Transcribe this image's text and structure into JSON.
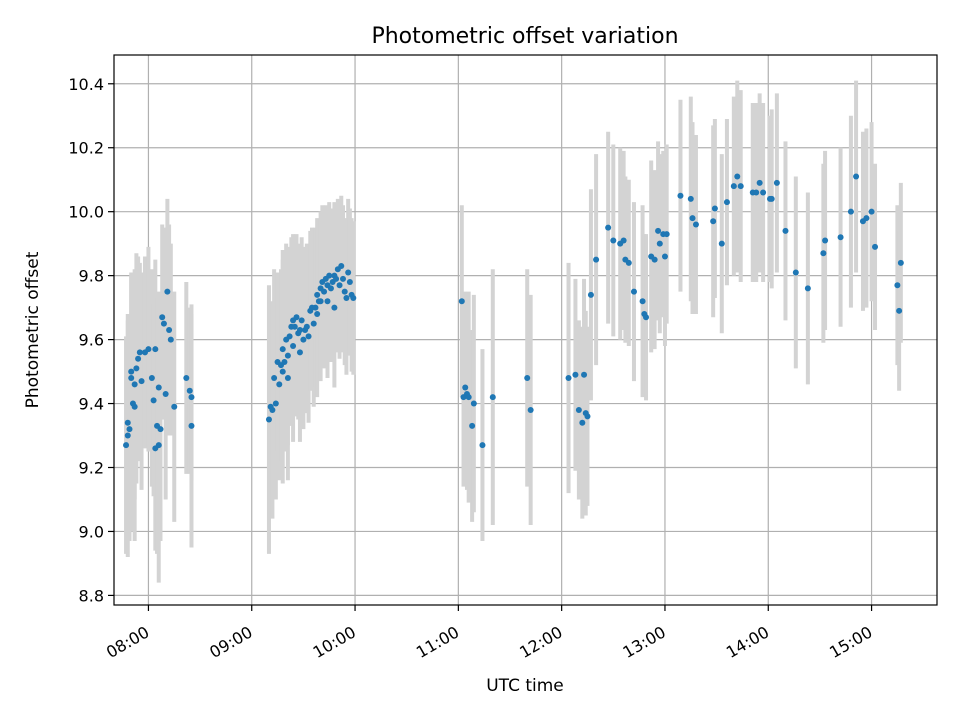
{
  "chart_data": {
    "type": "scatter",
    "title": "Photometric offset variation",
    "xlabel": "UTC time",
    "ylabel": "Photometric offset",
    "xlim": [
      "07:40",
      "15:38"
    ],
    "ylim": [
      8.77,
      10.49
    ],
    "x_ticks": [
      "08:00",
      "09:00",
      "10:00",
      "11:00",
      "12:00",
      "13:00",
      "14:00",
      "15:00"
    ],
    "y_ticks": [
      "8.8",
      "9.0",
      "9.2",
      "9.4",
      "9.6",
      "9.8",
      "10.0",
      "10.2",
      "10.4"
    ],
    "grid": true,
    "marker_color": "#1f77b4",
    "errorbar_color": "#d3d3d3",
    "points": [
      {
        "x": "07:47",
        "y": 9.27,
        "err": 0.34
      },
      {
        "x": "07:48",
        "y": 9.3,
        "err": 0.38
      },
      {
        "x": "07:48",
        "y": 9.34,
        "err": 0.32
      },
      {
        "x": "07:49",
        "y": 9.32,
        "err": 0.35
      },
      {
        "x": "07:50",
        "y": 9.48,
        "err": 0.33
      },
      {
        "x": "07:50",
        "y": 9.5,
        "err": 0.3
      },
      {
        "x": "07:51",
        "y": 9.4,
        "err": 0.4
      },
      {
        "x": "07:52",
        "y": 9.46,
        "err": 0.36
      },
      {
        "x": "07:52",
        "y": 9.39,
        "err": 0.42
      },
      {
        "x": "07:53",
        "y": 9.51,
        "err": 0.36
      },
      {
        "x": "07:54",
        "y": 9.54,
        "err": 0.32
      },
      {
        "x": "07:55",
        "y": 9.56,
        "err": 0.28
      },
      {
        "x": "07:56",
        "y": 9.47,
        "err": 0.34
      },
      {
        "x": "07:58",
        "y": 9.56,
        "err": 0.3
      },
      {
        "x": "08:00",
        "y": 9.57,
        "err": 0.32
      },
      {
        "x": "08:02",
        "y": 9.48,
        "err": 0.34
      },
      {
        "x": "08:03",
        "y": 9.41,
        "err": 0.3
      },
      {
        "x": "08:04",
        "y": 9.57,
        "err": 0.28
      },
      {
        "x": "08:04",
        "y": 9.26,
        "err": 0.32
      },
      {
        "x": "08:05",
        "y": 9.33,
        "err": 0.4
      },
      {
        "x": "08:06",
        "y": 9.27,
        "err": 0.43
      },
      {
        "x": "08:06",
        "y": 9.45,
        "err": 0.3
      },
      {
        "x": "08:07",
        "y": 9.32,
        "err": 0.35
      },
      {
        "x": "08:08",
        "y": 9.67,
        "err": 0.29
      },
      {
        "x": "08:09",
        "y": 9.65,
        "err": 0.3
      },
      {
        "x": "08:10",
        "y": 9.43,
        "err": 0.33
      },
      {
        "x": "08:11",
        "y": 9.75,
        "err": 0.29
      },
      {
        "x": "08:12",
        "y": 9.63,
        "err": 0.33
      },
      {
        "x": "08:13",
        "y": 9.6,
        "err": 0.3
      },
      {
        "x": "08:15",
        "y": 9.39,
        "err": 0.36
      },
      {
        "x": "08:22",
        "y": 9.48,
        "err": 0.3
      },
      {
        "x": "08:24",
        "y": 9.44,
        "err": 0.26
      },
      {
        "x": "08:25",
        "y": 9.42,
        "err": 0.26
      },
      {
        "x": "08:25",
        "y": 9.33,
        "err": 0.38
      },
      {
        "x": "09:10",
        "y": 9.35,
        "err": 0.42
      },
      {
        "x": "09:11",
        "y": 9.39,
        "err": 0.32
      },
      {
        "x": "09:12",
        "y": 9.38,
        "err": 0.34
      },
      {
        "x": "09:13",
        "y": 9.48,
        "err": 0.34
      },
      {
        "x": "09:14",
        "y": 9.4,
        "err": 0.3
      },
      {
        "x": "09:15",
        "y": 9.53,
        "err": 0.28
      },
      {
        "x": "09:16",
        "y": 9.46,
        "err": 0.3
      },
      {
        "x": "09:17",
        "y": 9.52,
        "err": 0.3
      },
      {
        "x": "09:18",
        "y": 9.57,
        "err": 0.31
      },
      {
        "x": "09:18",
        "y": 9.5,
        "err": 0.35
      },
      {
        "x": "09:19",
        "y": 9.53,
        "err": 0.28
      },
      {
        "x": "09:20",
        "y": 9.6,
        "err": 0.3
      },
      {
        "x": "09:21",
        "y": 9.55,
        "err": 0.28
      },
      {
        "x": "09:21",
        "y": 9.48,
        "err": 0.32
      },
      {
        "x": "09:22",
        "y": 9.61,
        "err": 0.28
      },
      {
        "x": "09:23",
        "y": 9.64,
        "err": 0.28
      },
      {
        "x": "09:24",
        "y": 9.66,
        "err": 0.27
      },
      {
        "x": "09:24",
        "y": 9.58,
        "err": 0.3
      },
      {
        "x": "09:25",
        "y": 9.64,
        "err": 0.28
      },
      {
        "x": "09:26",
        "y": 9.67,
        "err": 0.26
      },
      {
        "x": "09:27",
        "y": 9.62,
        "err": 0.27
      },
      {
        "x": "09:28",
        "y": 9.63,
        "err": 0.27
      },
      {
        "x": "09:28",
        "y": 9.56,
        "err": 0.28
      },
      {
        "x": "09:29",
        "y": 9.66,
        "err": 0.26
      },
      {
        "x": "09:30",
        "y": 9.6,
        "err": 0.28
      },
      {
        "x": "09:31",
        "y": 9.63,
        "err": 0.26
      },
      {
        "x": "09:32",
        "y": 9.64,
        "err": 0.26
      },
      {
        "x": "09:33",
        "y": 9.61,
        "err": 0.27
      },
      {
        "x": "09:34",
        "y": 9.69,
        "err": 0.25
      },
      {
        "x": "09:35",
        "y": 9.7,
        "err": 0.25
      },
      {
        "x": "09:36",
        "y": 9.65,
        "err": 0.26
      },
      {
        "x": "09:37",
        "y": 9.7,
        "err": 0.25
      },
      {
        "x": "09:38",
        "y": 9.74,
        "err": 0.24
      },
      {
        "x": "09:38",
        "y": 9.68,
        "err": 0.26
      },
      {
        "x": "09:39",
        "y": 9.72,
        "err": 0.24
      },
      {
        "x": "09:40",
        "y": 9.76,
        "err": 0.24
      },
      {
        "x": "09:40",
        "y": 9.72,
        "err": 0.25
      },
      {
        "x": "09:41",
        "y": 9.78,
        "err": 0.24
      },
      {
        "x": "09:42",
        "y": 9.75,
        "err": 0.24
      },
      {
        "x": "09:43",
        "y": 9.79,
        "err": 0.23
      },
      {
        "x": "09:44",
        "y": 9.77,
        "err": 0.23
      },
      {
        "x": "09:44",
        "y": 9.72,
        "err": 0.24
      },
      {
        "x": "09:45",
        "y": 9.8,
        "err": 0.23
      },
      {
        "x": "09:46",
        "y": 9.76,
        "err": 0.23
      },
      {
        "x": "09:47",
        "y": 9.78,
        "err": 0.23
      },
      {
        "x": "09:48",
        "y": 9.7,
        "err": 0.25
      },
      {
        "x": "09:48",
        "y": 9.8,
        "err": 0.23
      },
      {
        "x": "09:49",
        "y": 9.79,
        "err": 0.23
      },
      {
        "x": "09:50",
        "y": 9.82,
        "err": 0.22
      },
      {
        "x": "09:51",
        "y": 9.77,
        "err": 0.23
      },
      {
        "x": "09:52",
        "y": 9.83,
        "err": 0.22
      },
      {
        "x": "09:53",
        "y": 9.79,
        "err": 0.23
      },
      {
        "x": "09:54",
        "y": 9.75,
        "err": 0.23
      },
      {
        "x": "09:55",
        "y": 9.73,
        "err": 0.24
      },
      {
        "x": "09:56",
        "y": 9.81,
        "err": 0.23
      },
      {
        "x": "09:57",
        "y": 9.78,
        "err": 0.23
      },
      {
        "x": "09:58",
        "y": 9.74,
        "err": 0.24
      },
      {
        "x": "09:59",
        "y": 9.73,
        "err": 0.24
      },
      {
        "x": "11:02",
        "y": 9.72,
        "err": 0.3
      },
      {
        "x": "11:03",
        "y": 9.42,
        "err": 0.28
      },
      {
        "x": "11:04",
        "y": 9.45,
        "err": 0.3
      },
      {
        "x": "11:05",
        "y": 9.43,
        "err": 0.3
      },
      {
        "x": "11:06",
        "y": 9.42,
        "err": 0.33
      },
      {
        "x": "11:08",
        "y": 9.33,
        "err": 0.3
      },
      {
        "x": "11:09",
        "y": 9.4,
        "err": 0.34
      },
      {
        "x": "11:14",
        "y": 9.27,
        "err": 0.3
      },
      {
        "x": "11:20",
        "y": 9.42,
        "err": 0.4
      },
      {
        "x": "11:40",
        "y": 9.48,
        "err": 0.34
      },
      {
        "x": "11:42",
        "y": 9.38,
        "err": 0.36
      },
      {
        "x": "12:04",
        "y": 9.48,
        "err": 0.36
      },
      {
        "x": "12:08",
        "y": 9.49,
        "err": 0.3
      },
      {
        "x": "12:10",
        "y": 9.38,
        "err": 0.28
      },
      {
        "x": "12:12",
        "y": 9.34,
        "err": 0.3
      },
      {
        "x": "12:13",
        "y": 9.49,
        "err": 0.3
      },
      {
        "x": "12:14",
        "y": 9.37,
        "err": 0.32
      },
      {
        "x": "12:15",
        "y": 9.36,
        "err": 0.28
      },
      {
        "x": "12:17",
        "y": 9.74,
        "err": 0.33
      },
      {
        "x": "12:20",
        "y": 9.85,
        "err": 0.33
      },
      {
        "x": "12:27",
        "y": 9.95,
        "err": 0.3
      },
      {
        "x": "12:30",
        "y": 9.91,
        "err": 0.3
      },
      {
        "x": "12:34",
        "y": 9.9,
        "err": 0.3
      },
      {
        "x": "12:36",
        "y": 9.91,
        "err": 0.28
      },
      {
        "x": "12:37",
        "y": 9.85,
        "err": 0.26
      },
      {
        "x": "12:39",
        "y": 9.84,
        "err": 0.26
      },
      {
        "x": "12:42",
        "y": 9.75,
        "err": 0.28
      },
      {
        "x": "12:47",
        "y": 9.72,
        "err": 0.3
      },
      {
        "x": "12:48",
        "y": 9.68,
        "err": 0.25
      },
      {
        "x": "12:49",
        "y": 9.67,
        "err": 0.26
      },
      {
        "x": "12:52",
        "y": 9.86,
        "err": 0.3
      },
      {
        "x": "12:54",
        "y": 9.85,
        "err": 0.28
      },
      {
        "x": "12:56",
        "y": 9.94,
        "err": 0.28
      },
      {
        "x": "12:57",
        "y": 9.9,
        "err": 0.28
      },
      {
        "x": "12:59",
        "y": 9.93,
        "err": 0.26
      },
      {
        "x": "13:00",
        "y": 9.86,
        "err": 0.28
      },
      {
        "x": "13:01",
        "y": 9.93,
        "err": 0.28
      },
      {
        "x": "13:09",
        "y": 10.05,
        "err": 0.3
      },
      {
        "x": "13:15",
        "y": 10.04,
        "err": 0.32
      },
      {
        "x": "13:16",
        "y": 9.98,
        "err": 0.3
      },
      {
        "x": "13:18",
        "y": 9.96,
        "err": 0.28
      },
      {
        "x": "13:28",
        "y": 9.97,
        "err": 0.3
      },
      {
        "x": "13:29",
        "y": 10.01,
        "err": 0.28
      },
      {
        "x": "13:33",
        "y": 9.9,
        "err": 0.28
      },
      {
        "x": "13:36",
        "y": 10.03,
        "err": 0.26
      },
      {
        "x": "13:40",
        "y": 10.08,
        "err": 0.28
      },
      {
        "x": "13:42",
        "y": 10.11,
        "err": 0.3
      },
      {
        "x": "13:44",
        "y": 10.08,
        "err": 0.3
      },
      {
        "x": "13:51",
        "y": 10.06,
        "err": 0.28
      },
      {
        "x": "13:53",
        "y": 10.06,
        "err": 0.28
      },
      {
        "x": "13:55",
        "y": 10.09,
        "err": 0.28
      },
      {
        "x": "13:57",
        "y": 10.06,
        "err": 0.28
      },
      {
        "x": "14:01",
        "y": 10.04,
        "err": 0.26
      },
      {
        "x": "14:02",
        "y": 10.04,
        "err": 0.28
      },
      {
        "x": "14:05",
        "y": 10.09,
        "err": 0.28
      },
      {
        "x": "14:10",
        "y": 9.94,
        "err": 0.28
      },
      {
        "x": "14:16",
        "y": 9.81,
        "err": 0.3
      },
      {
        "x": "14:23",
        "y": 9.76,
        "err": 0.3
      },
      {
        "x": "14:32",
        "y": 9.87,
        "err": 0.28
      },
      {
        "x": "14:33",
        "y": 9.91,
        "err": 0.28
      },
      {
        "x": "14:42",
        "y": 9.92,
        "err": 0.28
      },
      {
        "x": "14:48",
        "y": 10.0,
        "err": 0.3
      },
      {
        "x": "14:51",
        "y": 10.11,
        "err": 0.3
      },
      {
        "x": "14:55",
        "y": 9.97,
        "err": 0.28
      },
      {
        "x": "14:57",
        "y": 9.98,
        "err": 0.28
      },
      {
        "x": "15:00",
        "y": 10.0,
        "err": 0.28
      },
      {
        "x": "15:02",
        "y": 9.89,
        "err": 0.26
      },
      {
        "x": "15:15",
        "y": 9.77,
        "err": 0.25
      },
      {
        "x": "15:16",
        "y": 9.69,
        "err": 0.25
      },
      {
        "x": "15:17",
        "y": 9.84,
        "err": 0.25
      }
    ]
  }
}
